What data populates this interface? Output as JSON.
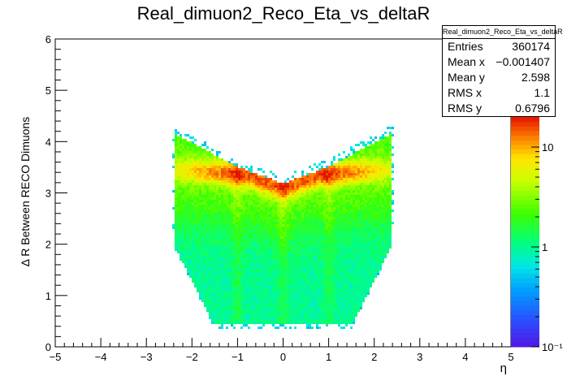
{
  "chart_data": {
    "type": "heatmap",
    "title": "Real_dimuon2_Reco_Eta_vs_deltaR",
    "xlabel": "η",
    "ylabel": "Δ R Between RECO Dimuons",
    "xlim": [
      -5,
      5
    ],
    "ylim": [
      0,
      6
    ],
    "x_ticks": [
      "−5",
      "−4",
      "−3",
      "−2",
      "−1",
      "0",
      "1",
      "2",
      "3",
      "4",
      "5"
    ],
    "y_ticks": [
      "0",
      "1",
      "2",
      "3",
      "4",
      "5",
      "6"
    ],
    "z_scale": "log",
    "z_ticks": [
      "10⁻¹",
      "1",
      "10"
    ],
    "z_range": [
      0.1,
      20
    ],
    "description_regions": {
      "eta_range": [
        -2.4,
        2.4
      ],
      "dense_band_dR": [
        2.9,
        3.3
      ],
      "cluster_peak_eta": [
        -1.0,
        0.0,
        1.0
      ]
    },
    "stats": {
      "name": "Real_dimuon2_Reco_Eta_vs_deltaR",
      "rows": [
        {
          "label": "Entries",
          "value": "360174"
        },
        {
          "label": "Mean x",
          "value": "−0.001407"
        },
        {
          "label": "Mean y",
          "value": "2.598"
        },
        {
          "label": "RMS x",
          "value": "1.1"
        },
        {
          "label": "RMS y",
          "value": "0.6796"
        }
      ]
    }
  }
}
